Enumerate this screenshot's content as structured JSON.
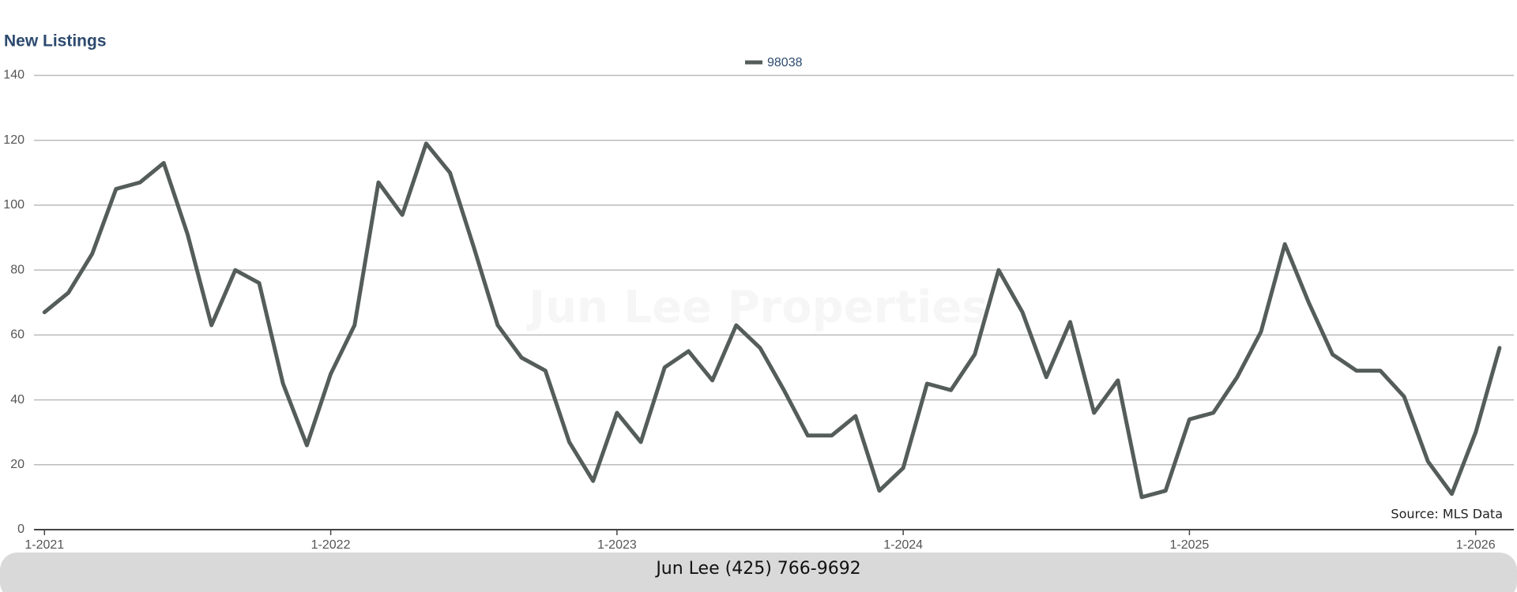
{
  "chart_data": {
    "type": "line",
    "title": "New Listings",
    "categories": [
      "1-2021",
      null,
      null,
      null,
      null,
      null,
      null,
      null,
      null,
      null,
      null,
      null,
      "1-2022",
      null,
      null,
      null,
      null,
      null,
      null,
      null,
      null,
      null,
      null,
      null,
      "1-2023",
      null,
      null,
      null,
      null,
      null,
      null,
      null,
      null,
      null,
      null,
      null,
      "1-2024",
      null,
      null,
      null,
      null,
      null,
      null,
      null,
      null,
      null,
      null,
      null,
      "1-2025",
      null,
      null,
      null,
      null,
      null,
      null,
      null,
      null,
      null,
      null,
      null,
      "1-2026",
      null
    ],
    "series": [
      {
        "name": "98038",
        "color": "#555d5b",
        "values": [
          67,
          73,
          85,
          105,
          107,
          113,
          91,
          63,
          80,
          76,
          45,
          26,
          48,
          63,
          107,
          97,
          119,
          110,
          87,
          63,
          53,
          49,
          27,
          15,
          36,
          27,
          50,
          55,
          46,
          63,
          56,
          43,
          29,
          29,
          35,
          12,
          19,
          45,
          43,
          54,
          80,
          67,
          47,
          64,
          36,
          46,
          10,
          12,
          34,
          36,
          47,
          61,
          88,
          70,
          54,
          49,
          49,
          41,
          21,
          11,
          30,
          56
        ]
      }
    ],
    "ylim": [
      0,
      140
    ],
    "yticks": [
      0,
      20,
      40,
      60,
      80,
      100,
      120,
      140
    ],
    "grid": true,
    "watermark": "Jun Lee Properties",
    "source": "Source: MLS Data"
  },
  "footer": "Jun Lee (425) 766-9692"
}
